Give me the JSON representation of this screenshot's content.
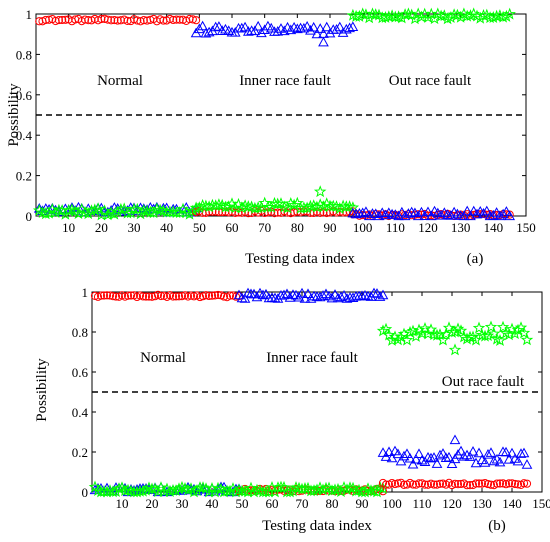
{
  "figure": {
    "panels": [
      {
        "tag": "(a)",
        "xlabel": "Testing data index",
        "ylabel": "Possibility",
        "xticks": [
          "10",
          "20",
          "30",
          "40",
          "50",
          "60",
          "70",
          "80",
          "90",
          "100",
          "110",
          "120",
          "130",
          "140",
          "150"
        ],
        "yticks": [
          "0",
          "0.2",
          "0.4",
          "0.6",
          "0.8",
          "1"
        ],
        "regions": [
          "Normal",
          "Inner race fault",
          "Out race fault"
        ]
      },
      {
        "tag": "(b)",
        "xlabel": "Testing data index",
        "ylabel": "Possibility",
        "xticks": [
          "10",
          "20",
          "30",
          "40",
          "50",
          "60",
          "70",
          "80",
          "90",
          "100",
          "110",
          "120",
          "130",
          "140",
          "150"
        ],
        "yticks": [
          "0",
          "0.2",
          "0.4",
          "0.6",
          "0.8",
          "1"
        ],
        "regions": [
          "Normal",
          "Inner race fault",
          "Out race fault"
        ]
      }
    ]
  },
  "colors": {
    "red": "#ff0000",
    "blue": "#0000ff",
    "green": "#00ff00",
    "threshold": "#000000"
  },
  "chart_data": [
    {
      "type": "scatter",
      "xlabel": "Testing data index",
      "ylabel": "Possibility",
      "xlim": [
        0,
        150
      ],
      "ylim": [
        0,
        1
      ],
      "threshold": 0.5,
      "marker_colors": {
        "circle": "#ff0000",
        "triangle": "#0000ff",
        "star": "#00ff00"
      },
      "segments": [
        {
          "region": "Normal",
          "x_range": [
            1,
            49
          ],
          "circle": 0.97,
          "triangle": 0.03,
          "star": 0.02
        },
        {
          "region": "Inner race fault",
          "x_range": [
            49,
            97
          ],
          "circle": 0.02,
          "triangle": 0.92,
          "star": 0.05
        },
        {
          "region": "Out race fault",
          "x_range": [
            97,
            145
          ],
          "circle": 0.005,
          "triangle": 0.01,
          "star": 0.99
        }
      ],
      "outliers": [
        {
          "marker": "triangle",
          "x": 88,
          "y": 0.86
        },
        {
          "marker": "star",
          "x": 87,
          "y": 0.12
        }
      ]
    },
    {
      "type": "scatter",
      "xlabel": "Testing data index",
      "ylabel": "Possibility",
      "xlim": [
        0,
        150
      ],
      "ylim": [
        0,
        1
      ],
      "threshold": 0.5,
      "marker_colors": {
        "circle": "#ff0000",
        "triangle": "#0000ff",
        "star": "#00ff00"
      },
      "segments": [
        {
          "region": "Normal",
          "x_range": [
            1,
            49
          ],
          "circle": 0.98,
          "triangle": 0.01,
          "star": 0.01
        },
        {
          "region": "Inner race fault",
          "x_range": [
            49,
            97
          ],
          "circle": 0.01,
          "triangle": 0.98,
          "star": 0.01
        },
        {
          "region": "Out race fault",
          "x_range": [
            97,
            145
          ],
          "circle": 0.04,
          "triangle": 0.17,
          "star": 0.79
        }
      ],
      "outliers": [
        {
          "marker": "star",
          "x": 121,
          "y": 0.71
        },
        {
          "marker": "triangle",
          "x": 121,
          "y": 0.26
        }
      ]
    }
  ]
}
